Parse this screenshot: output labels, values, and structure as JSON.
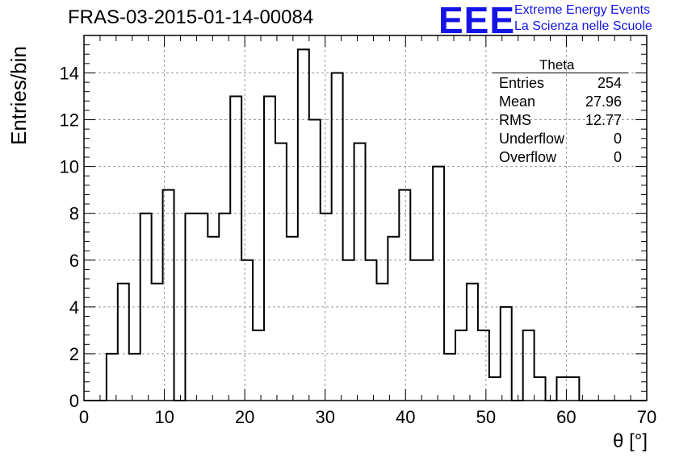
{
  "title": "FRAS-03-2015-01-14-00084",
  "logo": {
    "mark": "EEE",
    "line1": "Extreme Energy Events",
    "line2": "La Scienza nelle Scuole",
    "color": "#1414e6"
  },
  "stats": {
    "name": "Theta",
    "rows": [
      {
        "label": "Entries",
        "value": "254"
      },
      {
        "label": "Mean",
        "value": "27.96"
      },
      {
        "label": "RMS",
        "value": "12.77"
      },
      {
        "label": "Underflow",
        "value": "0"
      },
      {
        "label": "Overflow",
        "value": "0"
      }
    ]
  },
  "chart_data": {
    "type": "bar",
    "style": "step-histogram",
    "xlabel": "θ [°]",
    "ylabel": "Entries/bin",
    "xlim": [
      0,
      70
    ],
    "ylim": [
      0,
      15.6
    ],
    "x_ticks": [
      0,
      10,
      20,
      30,
      40,
      50,
      60,
      70
    ],
    "y_ticks": [
      0,
      2,
      4,
      6,
      8,
      10,
      12,
      14
    ],
    "grid": true,
    "bin_width": 1.4,
    "counts": [
      0,
      0,
      2,
      5,
      2,
      8,
      5,
      9,
      0,
      8,
      8,
      7,
      8,
      13,
      6,
      3,
      13,
      11,
      7,
      15,
      12,
      8,
      14,
      6,
      11,
      6,
      5,
      7,
      9,
      6,
      6,
      10,
      2,
      3,
      5,
      3,
      1,
      4,
      0,
      3,
      1,
      0,
      1,
      1,
      0,
      0,
      0,
      0,
      0,
      0
    ],
    "line_color": "#000000",
    "grid_color": "#999999"
  }
}
